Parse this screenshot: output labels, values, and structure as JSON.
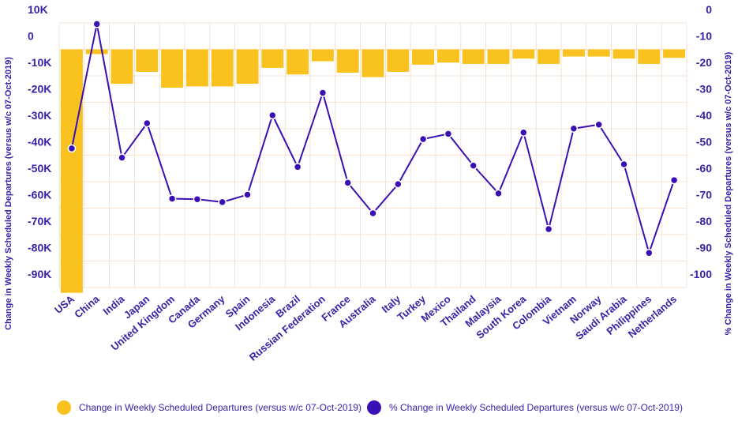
{
  "chart_data": {
    "type": "bar+line",
    "title": "",
    "categories": [
      "USA",
      "China",
      "India",
      "Japan",
      "United Kingdom",
      "Canada",
      "Germany",
      "Spain",
      "Indonesia",
      "Brazil",
      "Russian Federation",
      "France",
      "Australia",
      "Italy",
      "Turkey",
      "Mexico",
      "Thailand",
      "Malaysia",
      "South Korea",
      "Colombia",
      "Vietnam",
      "Norway",
      "Saudi Arabia",
      "Philippines",
      "Netherlands"
    ],
    "series": [
      {
        "name": "Change in Weekly Scheduled Departures (versus w/c 07-Oct-2019)",
        "type": "bar",
        "axis": "left",
        "color": "#f9c21f",
        "values": [
          -92000,
          -1800,
          -13000,
          -8500,
          -14500,
          -14000,
          -14000,
          -13000,
          -7000,
          -9500,
          -4500,
          -8800,
          -10500,
          -8500,
          -5800,
          -5000,
          -5500,
          -5500,
          -3500,
          -5500,
          -2700,
          -2700,
          -3500,
          -5500,
          -3200
        ]
      },
      {
        "name": "% Change in Weekly Scheduled Departures (versus w/c 07-Oct-2019)",
        "type": "line",
        "axis": "right",
        "color": "#3a10b4",
        "values": [
          -52.5,
          -5.5,
          -56,
          -43,
          -71.5,
          -71.7,
          -72.8,
          -70,
          -40,
          -59.5,
          -31.5,
          -65.5,
          -77,
          -66,
          -49,
          -47,
          -59,
          -69.5,
          -46.5,
          -83,
          -45,
          -43.5,
          -58.5,
          -92,
          -64.5
        ]
      }
    ],
    "left_axis": {
      "label": "Change in Weekly Scheduled Departures (versus w/c 07-Oct-2019)",
      "ticks": [
        10000,
        0,
        -10000,
        -20000,
        -30000,
        -40000,
        -50000,
        -60000,
        -70000,
        -80000,
        -90000
      ],
      "tick_labels": [
        "10K",
        "0",
        "-10K",
        "-20K",
        "-30K",
        "-40K",
        "-50K",
        "-60K",
        "-70K",
        "-80K",
        "-90K"
      ],
      "range": [
        10000,
        -90000
      ]
    },
    "right_axis": {
      "label": "% Change in Weekly Scheduled Departures (versus w/c 07-Oct-2019)",
      "ticks": [
        0,
        -10,
        -20,
        -30,
        -40,
        -50,
        -60,
        -70,
        -80,
        -90,
        -100
      ],
      "tick_labels": [
        "0",
        "-10",
        "-20",
        "-30",
        "-40",
        "-50",
        "-60",
        "-70",
        "-80",
        "-90",
        "-100"
      ],
      "range": [
        0,
        -100
      ]
    },
    "grid": true,
    "legend_position": "bottom",
    "colors": {
      "axis_text": "#3a1fa8",
      "grid": "#f7d7c9"
    }
  },
  "legend": {
    "bar_label": "Change in Weekly Scheduled Departures (versus w/c 07-Oct-2019)",
    "line_label": "% Change in Weekly Scheduled Departures (versus w/c 07-Oct-2019)"
  }
}
